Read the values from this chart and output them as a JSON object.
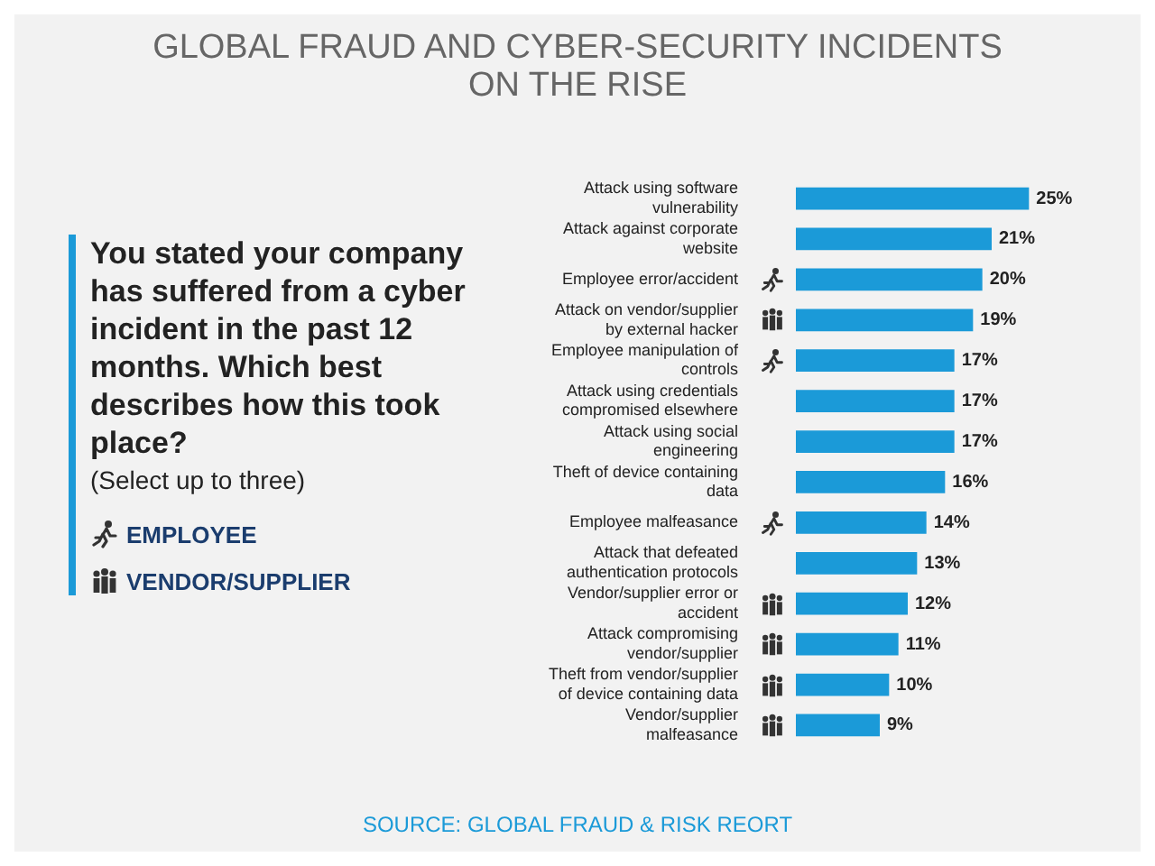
{
  "chart_data": {
    "type": "bar",
    "orientation": "horizontal",
    "title": "GLOBAL FRAUD AND CYBER-SECURITY INCIDENTS ON THE RISE",
    "subtitle": "You stated your company has suffered from a cyber incident in the past 12 months. Which best describes how this took place?",
    "categories": [
      "Attack using software vulnerability",
      "Attack against corporate website",
      "Employee error/accident",
      "Attack on vendor/supplier by external hacker",
      "Employee manipulation of controls",
      "Attack using credentials compromised elsewhere",
      "Attack using social engineering",
      "Theft of device containing data",
      "Employee malfeasance",
      "Attack that defeated authentication protocols",
      "Vendor/supplier error or accident",
      "Attack compromising vendor/supplier",
      "Theft from vendor/supplier of device containing data",
      "Vendor/supplier malfeasance"
    ],
    "values": [
      25,
      21,
      20,
      19,
      17,
      17,
      17,
      16,
      14,
      13,
      12,
      11,
      10,
      9
    ],
    "value_labels": [
      "25%",
      "21%",
      "20%",
      "19%",
      "17%",
      "17%",
      "17%",
      "16%",
      "14%",
      "13%",
      "12%",
      "11%",
      "10%",
      "9%"
    ],
    "color": "#1b9ad8",
    "annotations": [
      "(Select up to three)",
      "EMPLOYEE",
      "VENDOR/SUPPLIER",
      "SOURCE: GLOBAL FRAUD & RISK REORT"
    ]
  }
}
